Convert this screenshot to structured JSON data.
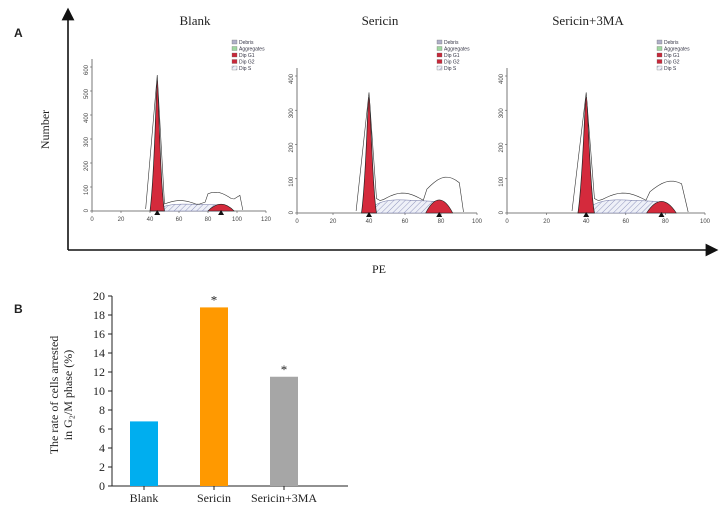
{
  "panels": {
    "a_label": "A",
    "b_label": "B"
  },
  "panel_a": {
    "histograms": [
      {
        "title": "Blank",
        "y_ticks": [
          "0",
          "100",
          "200",
          "300",
          "400",
          "500",
          "600"
        ],
        "x_ticks": [
          "0",
          "20",
          "40",
          "60",
          "80",
          "100",
          "120"
        ]
      },
      {
        "title": "Sericin",
        "y_ticks": [
          "0",
          "100",
          "200",
          "300",
          "400"
        ],
        "x_ticks": [
          "0",
          "20",
          "40",
          "60",
          "80",
          "100"
        ]
      },
      {
        "title": "Sericin+3MA",
        "y_ticks": [
          "0",
          "100",
          "200",
          "300",
          "400"
        ],
        "x_ticks": [
          "0",
          "20",
          "40",
          "60",
          "80",
          "100"
        ]
      }
    ],
    "legend": [
      "Debris",
      "Aggregates",
      "Dip G1",
      "Dip G2",
      "Dip S"
    ],
    "legend_colors": [
      "#b0b0c8",
      "#9fd6a0",
      "#c8283a",
      "#c8283a",
      "#e8e8f4"
    ],
    "y_title": "Number",
    "x_title": "PE",
    "g1_color": "#d42a3c"
  },
  "chart_data": {
    "type": "bar",
    "categories": [
      "Blank",
      "Sericin",
      "Sericin+3MA"
    ],
    "values": [
      6.8,
      18.8,
      11.5
    ],
    "colors": [
      "#00aeef",
      "#ff9900",
      "#a6a6a6"
    ],
    "significance": [
      "",
      "*",
      "*"
    ],
    "ylabel_line1": "The rate of cells arrested",
    "ylabel_line2": "in G₂/M phase (%)",
    "ylim": [
      0,
      20
    ],
    "yticks": [
      0,
      2,
      4,
      6,
      8,
      10,
      12,
      14,
      16,
      18,
      20
    ]
  }
}
